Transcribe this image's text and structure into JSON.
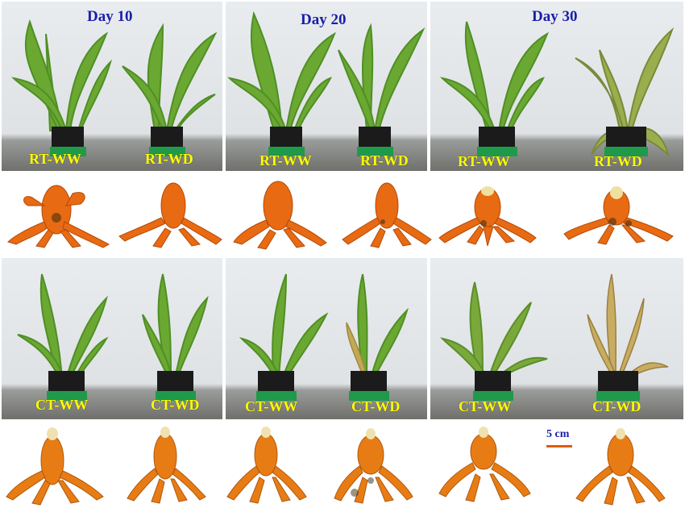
{
  "days": [
    "Day 10",
    "Day 20",
    "Day 30"
  ],
  "rt_labels": [
    "RT-WW",
    "RT-WD"
  ],
  "ct_labels": [
    "CT-WW",
    "CT-WD"
  ],
  "scale_label": "5 cm",
  "colors": {
    "day_text": "#1a1fa8",
    "treatment_text": "#ffff00",
    "leaf": "#5f9e2c",
    "rhizome": "#e86a12",
    "pot": "#1b1b1b",
    "tray": "#1f9a4a",
    "scale_bar": "#e05a10"
  }
}
